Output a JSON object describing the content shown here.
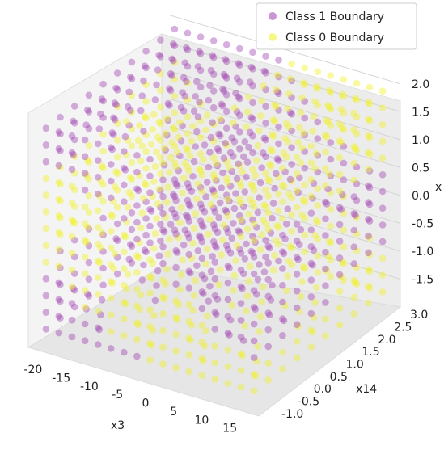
{
  "chart_data": {
    "type": "scatter",
    "projection": "3d",
    "xlabel": "x3",
    "ylabel": "x14",
    "zlabel": "x",
    "xlim": [
      -22,
      19
    ],
    "ylim": [
      -1.2,
      3.2
    ],
    "zlim": [
      -2.0,
      2.2
    ],
    "x_ticks": [
      "-20",
      "-15",
      "-10",
      "-5",
      "0",
      "5",
      "10",
      "15"
    ],
    "y_ticks": [
      "-1.0",
      "-0.5",
      "0.0",
      "0.5",
      "1.0",
      "1.5",
      "2.0",
      "2.5",
      "3.0"
    ],
    "z_ticks": [
      "-1.5",
      "-1.0",
      "-0.5",
      "0.0",
      "0.5",
      "1.0",
      "1.5",
      "2.0"
    ],
    "grid": true,
    "legend_position": "top-right",
    "series": [
      {
        "name": "Class 1 Boundary",
        "color": "#a040b0",
        "marker": "circle",
        "alpha": 0.4
      },
      {
        "name": "Class 0 Boundary",
        "color": "#f0f020",
        "marker": "circle",
        "alpha": 0.4
      }
    ]
  }
}
